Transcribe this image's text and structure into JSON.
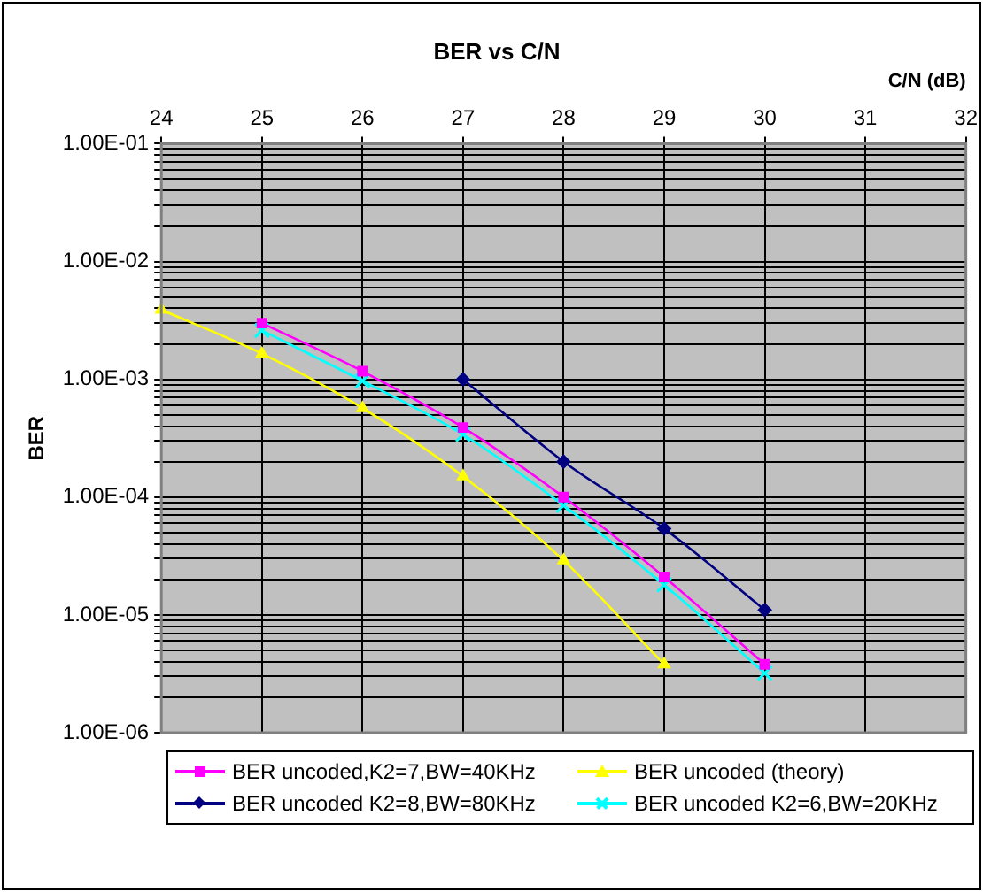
{
  "chart_data": {
    "type": "line",
    "title": "BER vs C/N",
    "xlabel": "C/N (dB)",
    "ylabel": "BER",
    "xlim": [
      24,
      32
    ],
    "xticks": [
      24,
      25,
      26,
      27,
      28,
      29,
      30,
      31,
      32
    ],
    "ylim": [
      1e-06,
      0.1
    ],
    "yticks": [
      {
        "value": 1e-06,
        "label": "1.00E-06"
      },
      {
        "value": 1e-05,
        "label": "1.00E-05"
      },
      {
        "value": 0.0001,
        "label": "1.00E-04"
      },
      {
        "value": 0.001,
        "label": "1.00E-03"
      },
      {
        "value": 0.01,
        "label": "1.00E-02"
      },
      {
        "value": 0.1,
        "label": "1.00E-01"
      }
    ],
    "log": "y",
    "grid": true,
    "legend": "bottom",
    "line_style": "solid",
    "series": [
      {
        "name": "BER uncoded,K2=7,BW=40KHz",
        "color": "#ff00ff",
        "marker": "square",
        "x": [
          25,
          26,
          27,
          28,
          29,
          30
        ],
        "values": [
          0.003,
          0.00117,
          0.00039,
          0.0001,
          2.1e-05,
          3.8e-06
        ]
      },
      {
        "name": "BER uncoded (theory)",
        "color": "#ffff00",
        "marker": "triangle",
        "x": [
          24,
          25,
          26,
          27,
          28,
          29
        ],
        "values": [
          0.0039,
          0.00165,
          0.00057,
          0.00015,
          2.9e-05,
          3.8e-06
        ]
      },
      {
        "name": "BER uncoded K2=8,BW=80KHz",
        "color": "#000080",
        "marker": "diamond",
        "x": [
          27,
          28,
          29,
          30
        ],
        "values": [
          0.001,
          0.0002,
          5.4e-05,
          1.1e-05
        ]
      },
      {
        "name": "BER uncoded K2=6,BW=20KHz",
        "color": "#00ffff",
        "marker": "cross",
        "x": [
          25,
          26,
          27,
          28,
          29,
          30
        ],
        "values": [
          0.0026,
          0.00097,
          0.00034,
          8.5e-05,
          1.8e-05,
          3.2e-06
        ]
      }
    ]
  }
}
